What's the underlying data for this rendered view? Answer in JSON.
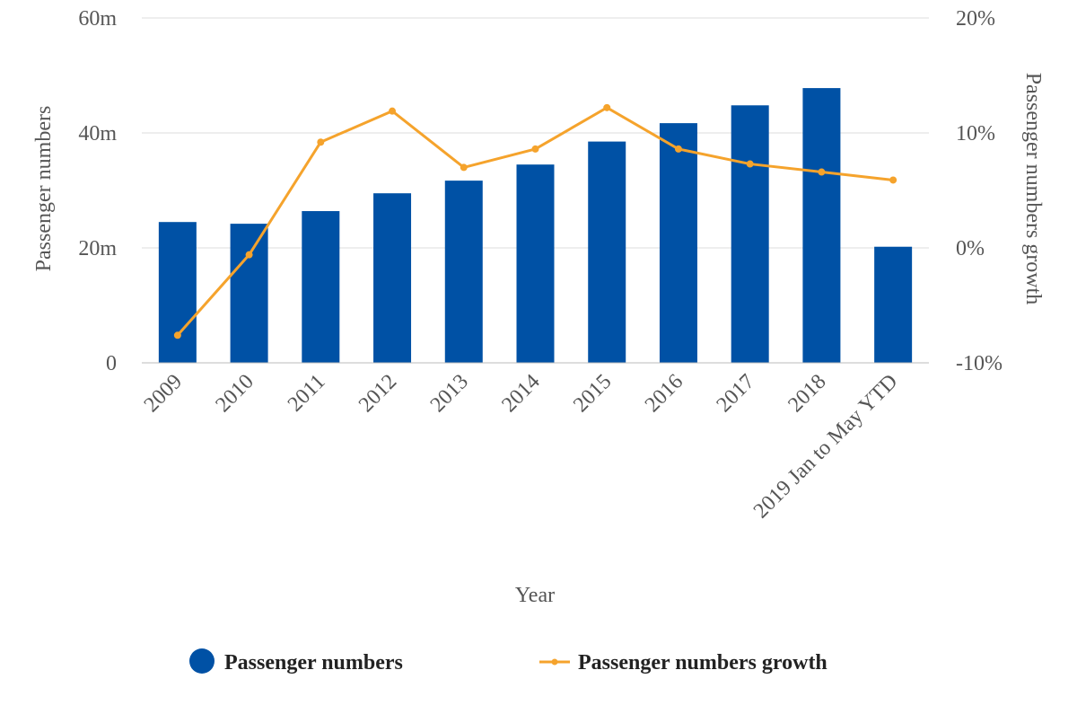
{
  "chart_data": {
    "type": "bar",
    "categories": [
      "2009",
      "2010",
      "2011",
      "2012",
      "2013",
      "2014",
      "2015",
      "2016",
      "2017",
      "2018",
      "2019 Jan to May YTD"
    ],
    "series": [
      {
        "name": "Passenger numbers",
        "type": "bar",
        "axis": "left",
        "values": [
          24.5,
          24.2,
          26.4,
          29.5,
          31.7,
          34.5,
          38.5,
          41.7,
          44.8,
          47.8,
          20.2
        ]
      },
      {
        "name": "Passenger numbers growth",
        "type": "line",
        "axis": "right",
        "values": [
          -7.6,
          -0.6,
          9.2,
          11.9,
          7.0,
          8.6,
          12.2,
          8.6,
          7.3,
          6.6,
          5.9
        ]
      }
    ],
    "xlabel": "Year",
    "ylabel": "Passenger numbers",
    "y2label": "Passenger numbers growth",
    "ylim": [
      0,
      60
    ],
    "y2lim": [
      -10,
      20
    ],
    "yticks": [
      "0",
      "20m",
      "40m",
      "60m"
    ],
    "y2ticks": [
      "-10%",
      "0%",
      "10%",
      "20%"
    ],
    "grid": true,
    "legend_position": "bottom",
    "colors": {
      "bar": "#0051A5",
      "line": "#F5A32C",
      "grid": "#dcdcdc",
      "axis": "#bbbbbb"
    }
  }
}
